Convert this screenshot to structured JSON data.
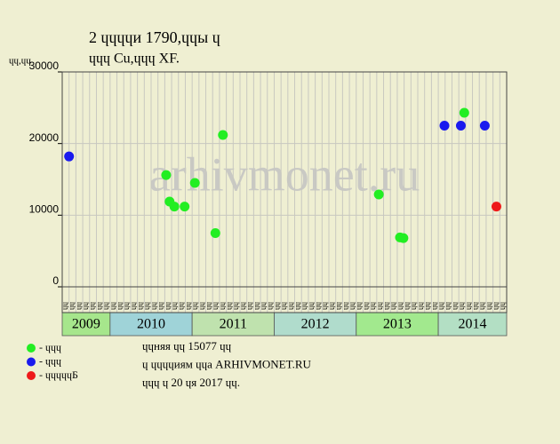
{
  "chart_data": {
    "type": "scatter",
    "title": "2 ɥɥɥɥи 1790,ɥɥы ɥ",
    "subtitle": "ɥɥɥ Cu,ɥɥɥ XF.",
    "y_label": "ɥɥ,ɥɥ",
    "watermark": "arhivmonet.ru",
    "x_groups": [
      {
        "label": "2009",
        "months": [
          "ɥɥ",
          "ɥɥ",
          "ɥɥ",
          "ɥɥ",
          "ɥɥ",
          "ɥɥ",
          "ɥɥ"
        ]
      },
      {
        "label": "2010",
        "months": [
          "ɥɥ",
          "ɥɥ",
          "ɥɥ",
          "ɥɥ",
          "ɥɥ",
          "ɥɥ",
          "ɥɥ",
          "ɥɥ",
          "ɥɥ",
          "ɥɥ",
          "ɥɥ",
          "ɥɥ"
        ]
      },
      {
        "label": "2011",
        "months": [
          "ɥɥ",
          "ɥɥ",
          "ɥɥ",
          "ɥɥ",
          "ɥɥ",
          "ɥɥ",
          "ɥɥ",
          "ɥɥ",
          "ɥɥ",
          "ɥɥ",
          "ɥɥ",
          "ɥɥ"
        ]
      },
      {
        "label": "2012",
        "months": [
          "ɥɥ",
          "ɥɥ",
          "ɥɥ",
          "ɥɥ",
          "ɥɥ",
          "ɥɥ",
          "ɥɥ",
          "ɥɥ",
          "ɥɥ",
          "ɥɥ",
          "ɥɥ",
          "ɥɥ"
        ]
      },
      {
        "label": "2013",
        "months": [
          "ɥɥ",
          "ɥɥ",
          "ɥɥ",
          "ɥɥ",
          "ɥɥ",
          "ɥɥ",
          "ɥɥ",
          "ɥɥ",
          "ɥɥ",
          "ɥɥ",
          "ɥɥ",
          "ɥɥ"
        ]
      },
      {
        "label": "2014",
        "months": [
          "ɥɥ",
          "ɥɥ",
          "ɥɥ",
          "ɥɥ",
          "ɥɥ",
          "ɥɥ",
          "ɥɥ",
          "ɥɥ",
          "ɥɥ",
          "ɥɥ"
        ]
      }
    ],
    "group_colors": [
      "#a6e68c",
      "#9fd3d8",
      "#bfe2ae",
      "#b0dccc",
      "#a2e98e",
      "#b3dfc4"
    ],
    "xlim": [
      0,
      65
    ],
    "ylim": [
      0,
      30000
    ],
    "yticks": [
      0,
      10000,
      20000,
      30000
    ],
    "grid": true,
    "series": [
      {
        "name": "- ɥɥɥ",
        "color": "#22ee22",
        "x": [
          15.2,
          15.7,
          16.4,
          17.9,
          19.4,
          22.4,
          23.5,
          46.3,
          49.4,
          49.9,
          58.8
        ],
        "values": [
          15600,
          11900,
          11200,
          11200,
          14500,
          7500,
          21200,
          12900,
          6900,
          6800,
          24300
        ]
      },
      {
        "name": "- ɥɥɥ",
        "color": "#1a1aee",
        "x": [
          1.0,
          55.9,
          58.3,
          61.8
        ],
        "values": [
          18200,
          22500,
          22500,
          22500
        ]
      },
      {
        "name": "- ɥɥɥɥɥБ",
        "color": "#ee1a1a",
        "x": [
          63.5
        ],
        "values": [
          11200
        ]
      }
    ],
    "notes": [
      "ɥɥняя ɥɥ 15077 ɥɥ",
      "ɥ ɥɥɥɥиям ɥɥа ARHIVMONET.RU",
      "ɥɥɥ ɥ 20 ɥя 2017 ɥɥ."
    ]
  }
}
